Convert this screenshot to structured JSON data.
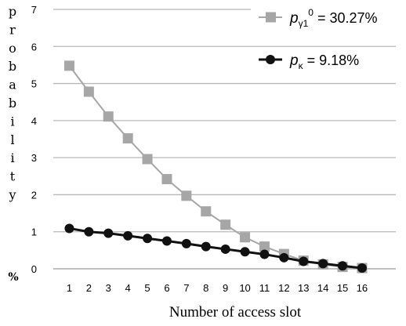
{
  "chart_data": {
    "type": "line",
    "xlabel": "Number of access slot",
    "ylabel": "probability",
    "ylabel_unit": "%",
    "x": [
      1,
      2,
      3,
      4,
      5,
      6,
      7,
      8,
      9,
      10,
      11,
      12,
      13,
      14,
      15,
      16
    ],
    "ylim": [
      0,
      7
    ],
    "yticks": [
      0,
      1,
      2,
      3,
      4,
      5,
      6,
      7
    ],
    "grid": true,
    "legend_position": "top-right",
    "series": [
      {
        "name_symbol": "p",
        "name_sub": "γ1",
        "name_sup": "0",
        "name_value": " = 30.27%",
        "color": "#a6a6a6",
        "marker": "square",
        "values": [
          5.48,
          4.78,
          4.11,
          3.52,
          2.96,
          2.42,
          1.97,
          1.55,
          1.19,
          0.85,
          0.6,
          0.4,
          0.22,
          0.12,
          0.05,
          0.02
        ]
      },
      {
        "name_symbol": "p",
        "name_sub": "κ",
        "name_value": " = 9.18%",
        "color": "#111111",
        "marker": "circle",
        "values": [
          1.09,
          1.0,
          0.96,
          0.89,
          0.82,
          0.75,
          0.68,
          0.6,
          0.53,
          0.46,
          0.39,
          0.3,
          0.2,
          0.14,
          0.08,
          0.02
        ]
      }
    ]
  }
}
